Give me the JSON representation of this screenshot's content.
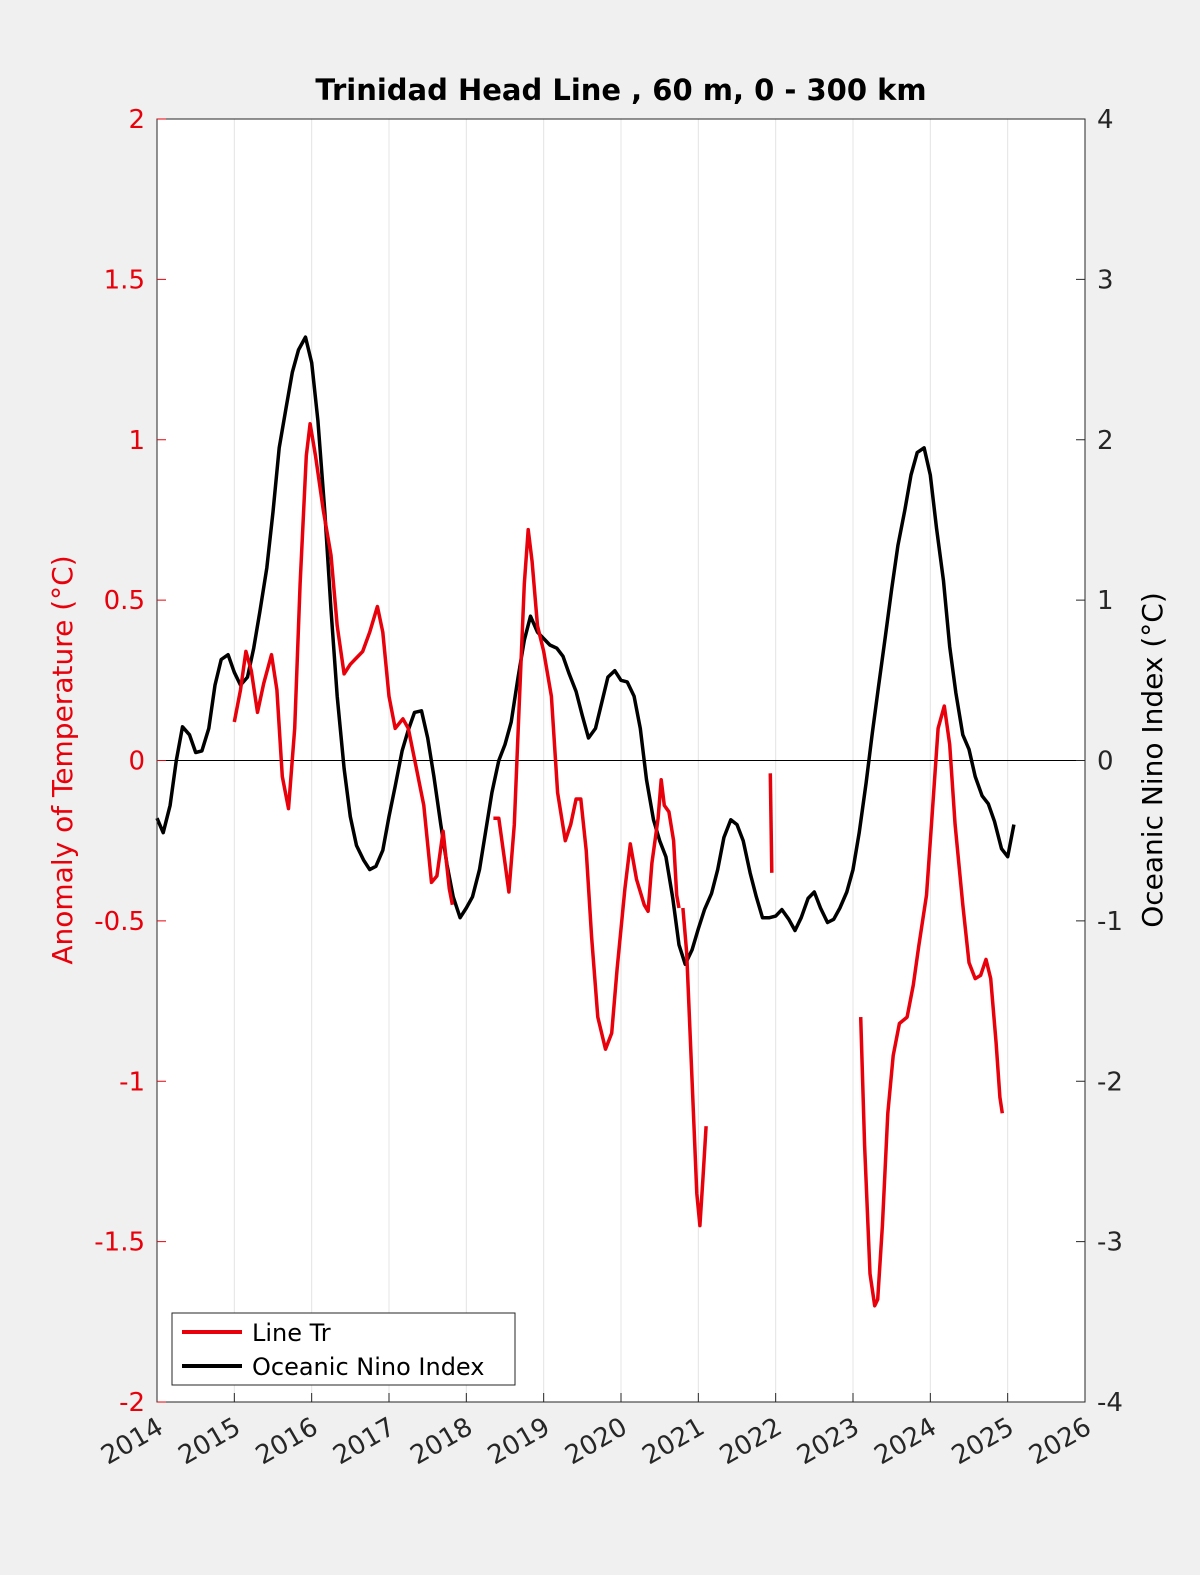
{
  "chart_data": {
    "type": "line",
    "title": "Trinidad Head Line , 60 m, 0 - 300 km",
    "ylabel_left": "Anomaly of Temperature (°C)",
    "ylabel_right": "Oceanic Nino Index (°C)",
    "xlabel": "",
    "xlim": [
      2014,
      2026
    ],
    "ylim_left": [
      -2,
      2
    ],
    "ylim_right": [
      -4,
      4
    ],
    "x_ticks": [
      "2014",
      "2015",
      "2016",
      "2017",
      "2018",
      "2019",
      "2020",
      "2021",
      "2022",
      "2023",
      "2024",
      "2025",
      "2026"
    ],
    "y_ticks_left": [
      "2",
      "1.5",
      "1",
      "0.5",
      "0",
      "-0.5",
      "-1",
      "-1.5",
      "-2"
    ],
    "y_ticks_right": [
      "4",
      "3",
      "2",
      "1",
      "0",
      "-1",
      "-2",
      "-3",
      "-4"
    ],
    "grid": "vertical",
    "legend": {
      "position": "bottom-left",
      "entries": [
        "Line Tr",
        "Oceanic Nino Index"
      ]
    },
    "colors": {
      "line_tr": "#e8000b",
      "oni": "#000000",
      "axis_left": "#e8000b",
      "axis_right": "#000000",
      "background": "#f0f0f0"
    },
    "series": [
      {
        "name": "Line Tr",
        "axis": "left",
        "segments": [
          [
            [
              2015.0,
              0.12
            ],
            [
              2015.08,
              0.22
            ],
            [
              2015.15,
              0.34
            ],
            [
              2015.22,
              0.28
            ],
            [
              2015.3,
              0.15
            ],
            [
              2015.38,
              0.24
            ],
            [
              2015.48,
              0.33
            ],
            [
              2015.55,
              0.22
            ],
            [
              2015.62,
              -0.05
            ],
            [
              2015.7,
              -0.15
            ],
            [
              2015.78,
              0.1
            ],
            [
              2015.85,
              0.55
            ],
            [
              2015.93,
              0.95
            ],
            [
              2015.98,
              1.05
            ],
            [
              2016.05,
              0.95
            ],
            [
              2016.15,
              0.78
            ],
            [
              2016.25,
              0.64
            ],
            [
              2016.33,
              0.42
            ],
            [
              2016.42,
              0.27
            ],
            [
              2016.5,
              0.3
            ],
            [
              2016.58,
              0.32
            ],
            [
              2016.66,
              0.34
            ],
            [
              2016.75,
              0.4
            ],
            [
              2016.85,
              0.48
            ],
            [
              2016.92,
              0.4
            ],
            [
              2017.0,
              0.2
            ],
            [
              2017.08,
              0.1
            ],
            [
              2017.18,
              0.13
            ],
            [
              2017.25,
              0.1
            ],
            [
              2017.35,
              -0.02
            ],
            [
              2017.45,
              -0.14
            ],
            [
              2017.55,
              -0.38
            ],
            [
              2017.62,
              -0.36
            ],
            [
              2017.7,
              -0.22
            ],
            [
              2017.78,
              -0.4
            ],
            [
              2017.82,
              -0.45
            ]
          ],
          [
            [
              2018.35,
              -0.18
            ],
            [
              2018.42,
              -0.18
            ],
            [
              2018.5,
              -0.32
            ],
            [
              2018.55,
              -0.41
            ],
            [
              2018.62,
              -0.2
            ],
            [
              2018.68,
              0.15
            ],
            [
              2018.75,
              0.55
            ],
            [
              2018.8,
              0.72
            ],
            [
              2018.85,
              0.62
            ],
            [
              2018.92,
              0.42
            ],
            [
              2019.0,
              0.34
            ],
            [
              2019.1,
              0.2
            ],
            [
              2019.18,
              -0.1
            ],
            [
              2019.28,
              -0.25
            ],
            [
              2019.35,
              -0.2
            ],
            [
              2019.42,
              -0.12
            ],
            [
              2019.48,
              -0.12
            ],
            [
              2019.55,
              -0.28
            ],
            [
              2019.62,
              -0.55
            ],
            [
              2019.7,
              -0.8
            ],
            [
              2019.8,
              -0.9
            ],
            [
              2019.88,
              -0.85
            ],
            [
              2019.95,
              -0.65
            ],
            [
              2020.05,
              -0.4
            ],
            [
              2020.12,
              -0.26
            ],
            [
              2020.2,
              -0.37
            ],
            [
              2020.3,
              -0.45
            ],
            [
              2020.35,
              -0.47
            ],
            [
              2020.4,
              -0.32
            ],
            [
              2020.48,
              -0.18
            ],
            [
              2020.52,
              -0.06
            ],
            [
              2020.56,
              -0.14
            ],
            [
              2020.62,
              -0.16
            ],
            [
              2020.68,
              -0.25
            ],
            [
              2020.72,
              -0.42
            ],
            [
              2020.75,
              -0.46
            ]
          ],
          [
            [
              2020.8,
              -0.46
            ],
            [
              2020.85,
              -0.6
            ],
            [
              2020.92,
              -1.0
            ],
            [
              2020.98,
              -1.35
            ],
            [
              2021.02,
              -1.45
            ],
            [
              2021.06,
              -1.3
            ],
            [
              2021.1,
              -1.14
            ]
          ],
          [
            [
              2021.93,
              -0.04
            ],
            [
              2021.95,
              -0.35
            ]
          ],
          [
            [
              2023.1,
              -0.8
            ],
            [
              2023.15,
              -1.2
            ],
            [
              2023.22,
              -1.6
            ],
            [
              2023.28,
              -1.7
            ],
            [
              2023.32,
              -1.68
            ],
            [
              2023.38,
              -1.45
            ],
            [
              2023.45,
              -1.1
            ],
            [
              2023.52,
              -0.92
            ],
            [
              2023.6,
              -0.82
            ],
            [
              2023.7,
              -0.8
            ],
            [
              2023.78,
              -0.7
            ],
            [
              2023.85,
              -0.58
            ],
            [
              2023.95,
              -0.42
            ],
            [
              2024.02,
              -0.18
            ],
            [
              2024.1,
              0.1
            ],
            [
              2024.18,
              0.17
            ],
            [
              2024.25,
              0.05
            ],
            [
              2024.32,
              -0.2
            ],
            [
              2024.42,
              -0.45
            ],
            [
              2024.5,
              -0.63
            ],
            [
              2024.58,
              -0.68
            ],
            [
              2024.65,
              -0.67
            ],
            [
              2024.72,
              -0.62
            ],
            [
              2024.78,
              -0.68
            ],
            [
              2024.85,
              -0.88
            ],
            [
              2024.9,
              -1.05
            ],
            [
              2024.93,
              -1.1
            ]
          ]
        ]
      },
      {
        "name": "Oceanic Nino Index",
        "axis": "right",
        "segments": [
          [
            [
              2014.0,
              -0.36
            ],
            [
              2014.08,
              -0.45
            ],
            [
              2014.17,
              -0.28
            ],
            [
              2014.25,
              0.0
            ],
            [
              2014.33,
              0.21
            ],
            [
              2014.42,
              0.16
            ],
            [
              2014.5,
              0.05
            ],
            [
              2014.58,
              0.06
            ],
            [
              2014.67,
              0.2
            ],
            [
              2014.75,
              0.47
            ],
            [
              2014.83,
              0.63
            ],
            [
              2014.92,
              0.66
            ],
            [
              2015.0,
              0.55
            ],
            [
              2015.08,
              0.47
            ],
            [
              2015.17,
              0.52
            ],
            [
              2015.25,
              0.7
            ],
            [
              2015.33,
              0.93
            ],
            [
              2015.42,
              1.2
            ],
            [
              2015.5,
              1.55
            ],
            [
              2015.58,
              1.95
            ],
            [
              2015.67,
              2.2
            ],
            [
              2015.75,
              2.42
            ],
            [
              2015.83,
              2.56
            ],
            [
              2015.92,
              2.64
            ],
            [
              2016.0,
              2.48
            ],
            [
              2016.08,
              2.12
            ],
            [
              2016.17,
              1.55
            ],
            [
              2016.25,
              0.94
            ],
            [
              2016.33,
              0.4
            ],
            [
              2016.42,
              -0.05
            ],
            [
              2016.5,
              -0.35
            ],
            [
              2016.58,
              -0.53
            ],
            [
              2016.67,
              -0.62
            ],
            [
              2016.75,
              -0.68
            ],
            [
              2016.83,
              -0.66
            ],
            [
              2016.92,
              -0.56
            ],
            [
              2017.0,
              -0.35
            ],
            [
              2017.08,
              -0.16
            ],
            [
              2017.17,
              0.06
            ],
            [
              2017.25,
              0.19
            ],
            [
              2017.33,
              0.3
            ],
            [
              2017.42,
              0.31
            ],
            [
              2017.5,
              0.14
            ],
            [
              2017.58,
              -0.1
            ],
            [
              2017.67,
              -0.4
            ],
            [
              2017.75,
              -0.65
            ],
            [
              2017.83,
              -0.85
            ],
            [
              2017.92,
              -0.98
            ],
            [
              2018.0,
              -0.92
            ],
            [
              2018.08,
              -0.85
            ],
            [
              2018.17,
              -0.68
            ],
            [
              2018.25,
              -0.44
            ],
            [
              2018.33,
              -0.2
            ],
            [
              2018.42,
              0.0
            ],
            [
              2018.5,
              0.1
            ],
            [
              2018.58,
              0.24
            ],
            [
              2018.67,
              0.52
            ],
            [
              2018.75,
              0.75
            ],
            [
              2018.83,
              0.9
            ],
            [
              2018.92,
              0.8
            ],
            [
              2019.0,
              0.76
            ],
            [
              2019.08,
              0.72
            ],
            [
              2019.17,
              0.7
            ],
            [
              2019.25,
              0.65
            ],
            [
              2019.33,
              0.54
            ],
            [
              2019.42,
              0.43
            ],
            [
              2019.5,
              0.28
            ],
            [
              2019.58,
              0.14
            ],
            [
              2019.67,
              0.2
            ],
            [
              2019.75,
              0.36
            ],
            [
              2019.83,
              0.52
            ],
            [
              2019.92,
              0.56
            ],
            [
              2020.0,
              0.5
            ],
            [
              2020.08,
              0.49
            ],
            [
              2020.17,
              0.4
            ],
            [
              2020.25,
              0.2
            ],
            [
              2020.33,
              -0.12
            ],
            [
              2020.42,
              -0.37
            ],
            [
              2020.5,
              -0.5
            ],
            [
              2020.58,
              -0.6
            ],
            [
              2020.67,
              -0.86
            ],
            [
              2020.75,
              -1.15
            ],
            [
              2020.83,
              -1.27
            ],
            [
              2020.92,
              -1.18
            ],
            [
              2021.0,
              -1.05
            ],
            [
              2021.08,
              -0.93
            ],
            [
              2021.17,
              -0.83
            ],
            [
              2021.25,
              -0.68
            ],
            [
              2021.33,
              -0.48
            ],
            [
              2021.42,
              -0.37
            ],
            [
              2021.5,
              -0.4
            ],
            [
              2021.58,
              -0.5
            ],
            [
              2021.67,
              -0.7
            ],
            [
              2021.75,
              -0.85
            ],
            [
              2021.83,
              -0.98
            ],
            [
              2021.92,
              -0.98
            ],
            [
              2022.0,
              -0.97
            ],
            [
              2022.08,
              -0.93
            ],
            [
              2022.17,
              -0.99
            ],
            [
              2022.25,
              -1.06
            ],
            [
              2022.33,
              -0.98
            ],
            [
              2022.42,
              -0.86
            ],
            [
              2022.5,
              -0.82
            ],
            [
              2022.58,
              -0.92
            ],
            [
              2022.67,
              -1.01
            ],
            [
              2022.75,
              -0.99
            ],
            [
              2022.83,
              -0.92
            ],
            [
              2022.92,
              -0.82
            ],
            [
              2023.0,
              -0.68
            ],
            [
              2023.08,
              -0.45
            ],
            [
              2023.17,
              -0.14
            ],
            [
              2023.25,
              0.17
            ],
            [
              2023.33,
              0.46
            ],
            [
              2023.42,
              0.78
            ],
            [
              2023.5,
              1.07
            ],
            [
              2023.58,
              1.34
            ],
            [
              2023.67,
              1.56
            ],
            [
              2023.75,
              1.78
            ],
            [
              2023.83,
              1.92
            ],
            [
              2023.92,
              1.95
            ],
            [
              2024.0,
              1.78
            ],
            [
              2024.08,
              1.45
            ],
            [
              2024.17,
              1.12
            ],
            [
              2024.25,
              0.71
            ],
            [
              2024.33,
              0.42
            ],
            [
              2024.42,
              0.16
            ],
            [
              2024.5,
              0.07
            ],
            [
              2024.58,
              -0.1
            ],
            [
              2024.67,
              -0.22
            ],
            [
              2024.75,
              -0.27
            ],
            [
              2024.83,
              -0.38
            ],
            [
              2024.92,
              -0.55
            ],
            [
              2025.0,
              -0.6
            ],
            [
              2025.08,
              -0.4
            ]
          ]
        ]
      }
    ]
  }
}
